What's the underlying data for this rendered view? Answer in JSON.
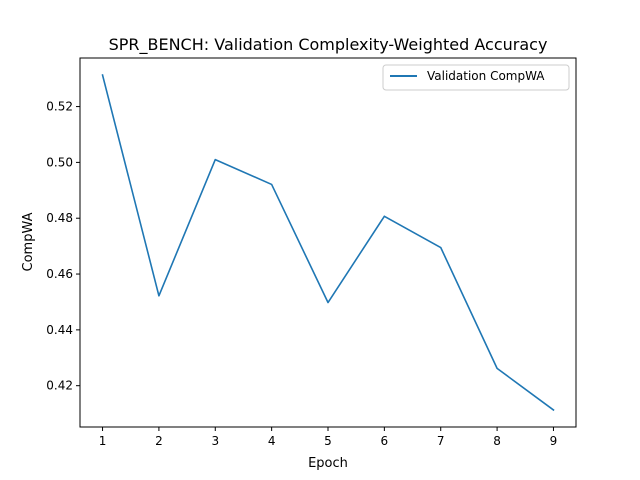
{
  "chart_data": {
    "type": "line",
    "title": "SPR_BENCH: Validation Complexity-Weighted Accuracy",
    "xlabel": "Epoch",
    "ylabel": "CompWA",
    "x": [
      1,
      2,
      3,
      4,
      5,
      6,
      7,
      8,
      9
    ],
    "series": [
      {
        "name": "Validation CompWA",
        "color": "#1f77b4",
        "values": [
          0.5313,
          0.4522,
          0.501,
          0.4921,
          0.4498,
          0.4807,
          0.4695,
          0.4262,
          0.4113
        ]
      }
    ],
    "xlim": [
      0.6,
      9.4
    ],
    "ylim": [
      0.4052,
      0.5374
    ],
    "xticks": [
      "1",
      "2",
      "3",
      "4",
      "5",
      "6",
      "7",
      "8",
      "9"
    ],
    "yticks": [
      "0.42",
      "0.44",
      "0.46",
      "0.48",
      "0.50",
      "0.52"
    ],
    "grid": false,
    "legend": "top-right"
  }
}
